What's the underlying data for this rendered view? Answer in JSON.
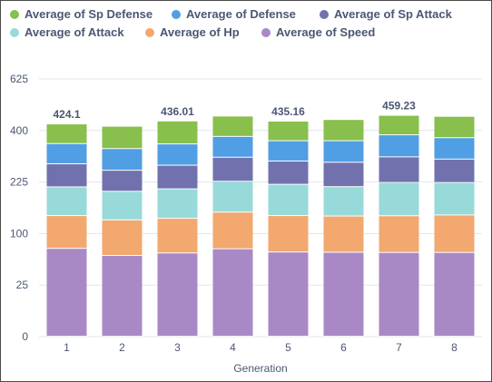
{
  "chart_data": {
    "type": "bar",
    "stacked": true,
    "title": "",
    "xlabel": "Generation",
    "ylabel": "",
    "categories": [
      "1",
      "2",
      "3",
      "4",
      "5",
      "6",
      "7",
      "8"
    ],
    "y_ticks": [
      "0",
      "25",
      "100",
      "225",
      "400",
      "625"
    ],
    "y_scale": "sqrt",
    "ylim": [
      0,
      625
    ],
    "grid": true,
    "legend_position": "top",
    "series": [
      {
        "name": "Average of Speed",
        "color": "#a989c5",
        "values": [
          72.6,
          61.4,
          65.2,
          71.9,
          66.7,
          66.3,
          66.0,
          66.0
        ]
      },
      {
        "name": "Average of Hp",
        "color": "#f2a86f",
        "values": [
          64.3,
          65.9,
          65.6,
          73.0,
          70.2,
          69.6,
          70.5,
          72.3
        ]
      },
      {
        "name": "Average of Attack",
        "color": "#98d9d9",
        "values": [
          72.9,
          70.3,
          73.5,
          80.9,
          80.2,
          74.5,
          86.0,
          84.0
        ]
      },
      {
        "name": "Average of Sp Attack",
        "color": "#7172ad",
        "values": [
          69.9,
          61.6,
          70.9,
          75.6,
          71.6,
          74.3,
          80.2,
          72.9
        ]
      },
      {
        "name": "Average of Defense",
        "color": "#509ee3",
        "values": [
          69.5,
          72.0,
          72.7,
          74.2,
          70.8,
          74.9,
          79.0,
          75.6
        ]
      },
      {
        "name": "Average of Sp Defense",
        "color": "#88bf4d",
        "values": [
          74.9,
          83.8,
          88.1,
          80.6,
          75.7,
          82.3,
          77.5,
          84.2
        ]
      }
    ],
    "legend_order": [
      "Average of Sp Defense",
      "Average of Defense",
      "Average of Sp Attack",
      "Average of Attack",
      "Average of Hp",
      "Average of Speed"
    ],
    "data_labels": [
      {
        "category": "1",
        "text": "424.1"
      },
      {
        "category": "3",
        "text": "436.01"
      },
      {
        "category": "5",
        "text": "435.16"
      },
      {
        "category": "7",
        "text": "459.23"
      }
    ]
  }
}
